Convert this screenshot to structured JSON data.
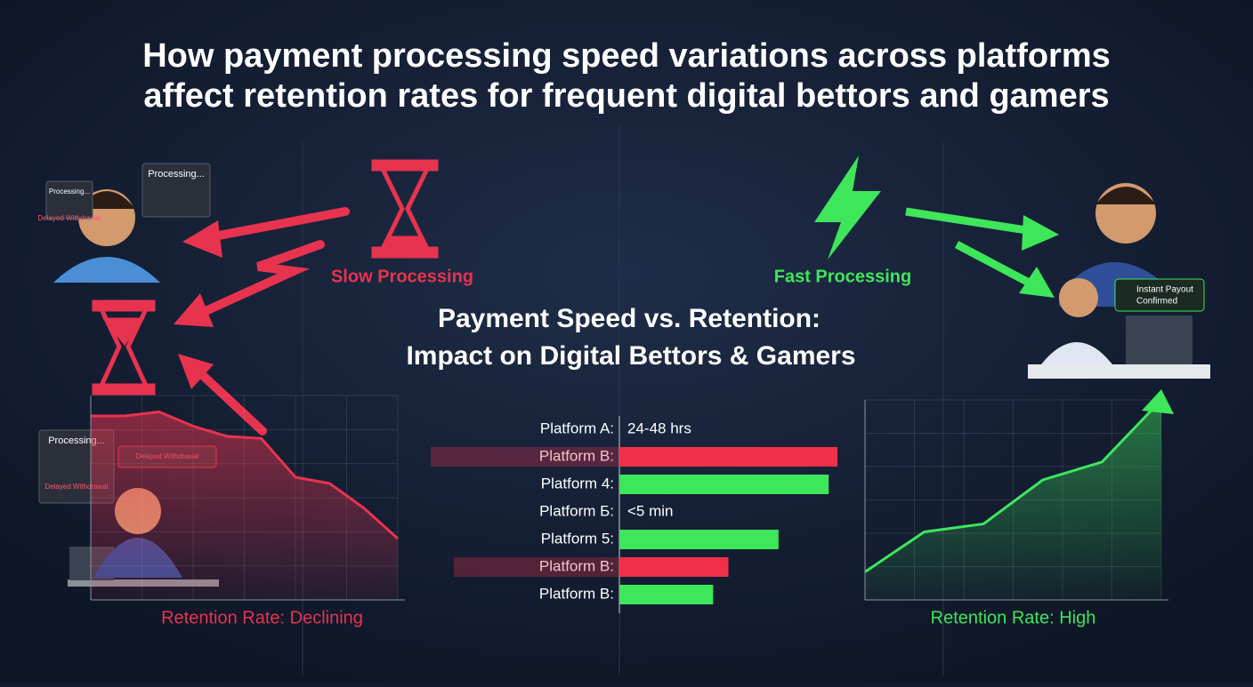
{
  "header": {
    "title_lines": [
      "How payment processing speed variations across platforms",
      "affect retention rates for frequent digital bettors and gamers"
    ]
  },
  "subtitle_lines": [
    "Payment Speed vs. Retention:",
    "Impact on Digital Bettors & Gamers"
  ],
  "slow": {
    "label": "Slow Processing",
    "bubbles": [
      "Processing...",
      "Processing...",
      "Delayed Withdrawal",
      "Processing...",
      "Delayed Withdrawal",
      "Delayed Withdrawal"
    ]
  },
  "fast": {
    "label": "Fast Processing",
    "bubble_lines": [
      "Instant Payout",
      "Confirmed"
    ]
  },
  "chart_data": [
    {
      "type": "area",
      "label": "Retention Rate: Declining",
      "color": "#e8334f",
      "values": [
        90,
        90,
        92,
        85,
        80,
        79,
        60,
        57,
        45,
        30
      ]
    },
    {
      "type": "bar",
      "categories": [
        "Platform A:",
        "Platform B:",
        "Platform 4:",
        "Platform Б:",
        "Platform 5:",
        "Platform B:",
        "Platform B:"
      ],
      "values": [
        null,
        100,
        96,
        null,
        73,
        50,
        43
      ],
      "annotations": [
        "24-48 hrs",
        null,
        null,
        "<5 min",
        null,
        null,
        null
      ],
      "colors": [
        null,
        "#f0304a",
        "#3ee65a",
        null,
        "#3ee65a",
        "#f0304a",
        "#3ee65a"
      ]
    },
    {
      "type": "area",
      "label": "Retention Rate: High",
      "color": "#3ee65a",
      "values": [
        14,
        34,
        38,
        60,
        69,
        100
      ]
    }
  ]
}
